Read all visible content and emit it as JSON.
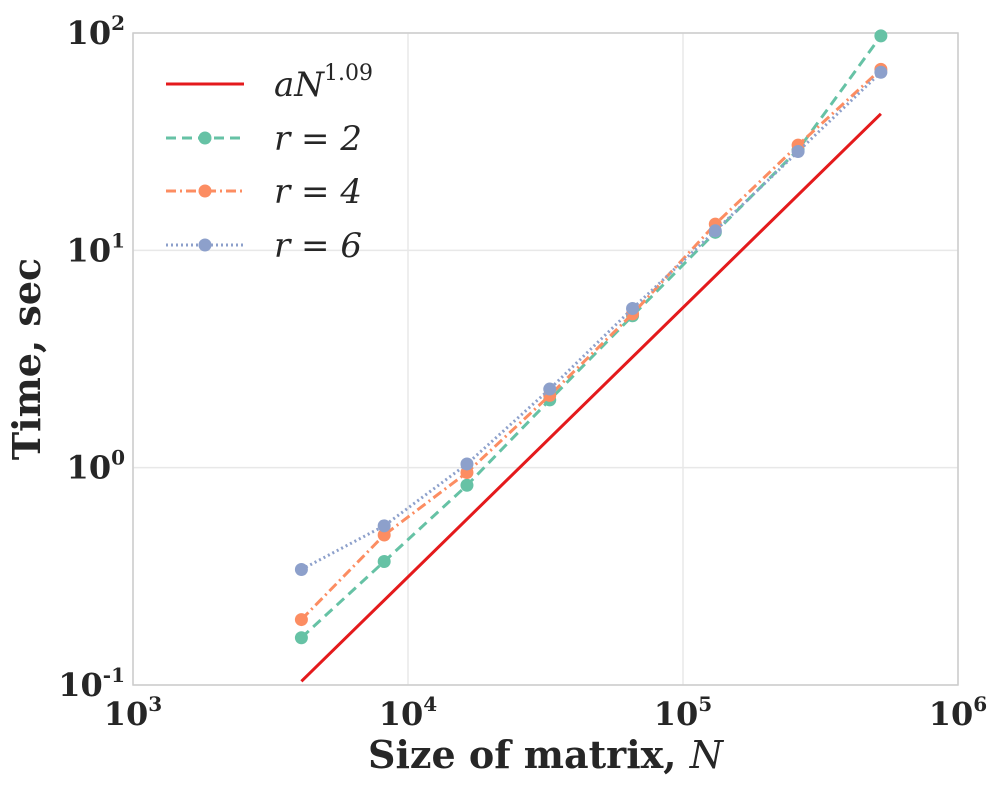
{
  "chart_data": {
    "type": "line",
    "xscale": "log",
    "yscale": "log",
    "xlim": [
      1000,
      1000000
    ],
    "ylim": [
      0.1,
      100
    ],
    "grid": true,
    "legend_position": "top-left",
    "xlabel": "Size of matrix, ",
    "xlabel_var": "N",
    "ylabel": "Time, sec",
    "x_ticks": [
      {
        "base": "10",
        "exp": "3",
        "value": 1000
      },
      {
        "base": "10",
        "exp": "4",
        "value": 10000
      },
      {
        "base": "10",
        "exp": "5",
        "value": 100000
      },
      {
        "base": "10",
        "exp": "6",
        "value": 1000000
      }
    ],
    "y_ticks": [
      {
        "base": "10",
        "exp": "-1",
        "value": 0.1
      },
      {
        "base": "10",
        "exp": "0",
        "value": 1
      },
      {
        "base": "10",
        "exp": "1",
        "value": 10
      },
      {
        "base": "10",
        "exp": "2",
        "value": 100
      }
    ],
    "x": [
      4096,
      8192,
      16384,
      32768,
      65536,
      131072,
      262144,
      524288
    ],
    "series": [
      {
        "key": "fit",
        "legend_main": "aN",
        "legend_sup": "1.09",
        "color": "#e41a1c",
        "dash": "solid",
        "markers": false,
        "x": [
          4096,
          524288
        ],
        "values": [
          0.104,
          42.5
        ]
      },
      {
        "key": "r2",
        "legend_main": "r = 2",
        "legend_sup": "",
        "color": "#66c2a5",
        "dash": "dashed",
        "markers": true,
        "values": [
          0.165,
          0.37,
          0.83,
          2.05,
          5.0,
          12.1,
          29.0,
          97.0
        ]
      },
      {
        "key": "r4",
        "legend_main": "r = 4",
        "legend_sup": "",
        "color": "#fc8d62",
        "dash": "dashdot",
        "markers": true,
        "values": [
          0.2,
          0.49,
          0.95,
          2.15,
          5.1,
          13.2,
          30.5,
          68.0
        ]
      },
      {
        "key": "r6",
        "legend_main": "r = 6",
        "legend_sup": "",
        "color": "#8da0cb",
        "dash": "dotted",
        "markers": true,
        "values": [
          0.34,
          0.54,
          1.04,
          2.3,
          5.4,
          12.3,
          28.5,
          66.0
        ]
      }
    ]
  }
}
